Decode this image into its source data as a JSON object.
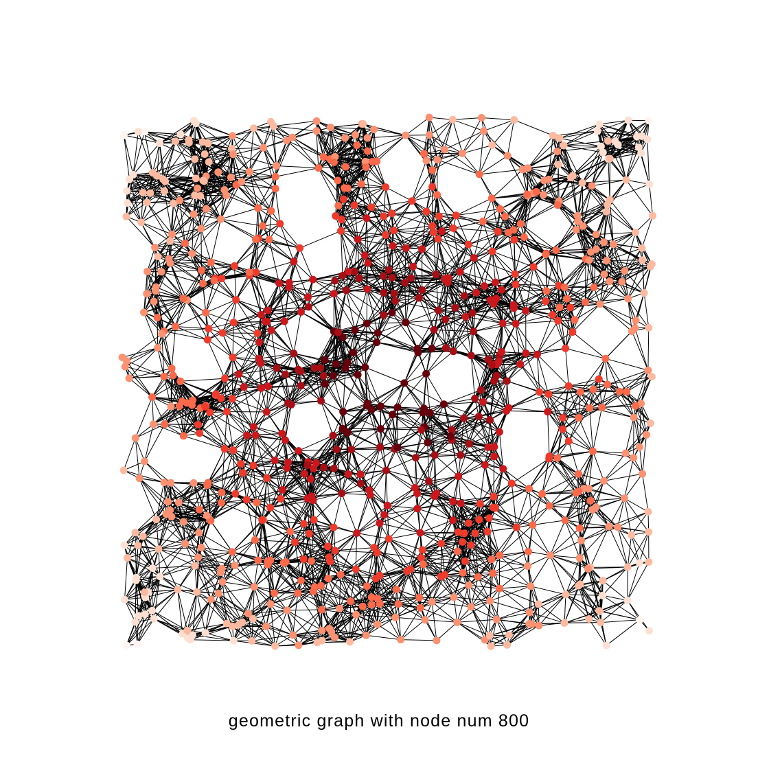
{
  "figure": {
    "caption": "geometric graph with node num 800"
  },
  "graph": {
    "node_count": 800,
    "edge_color": "#000000",
    "node_colormap": [
      "#fff5f0",
      "#fee0d2",
      "#fcbba1",
      "#fc9272",
      "#fb6a4a",
      "#ef3b2c",
      "#cb181d",
      "#a50f15",
      "#67000d"
    ]
  }
}
